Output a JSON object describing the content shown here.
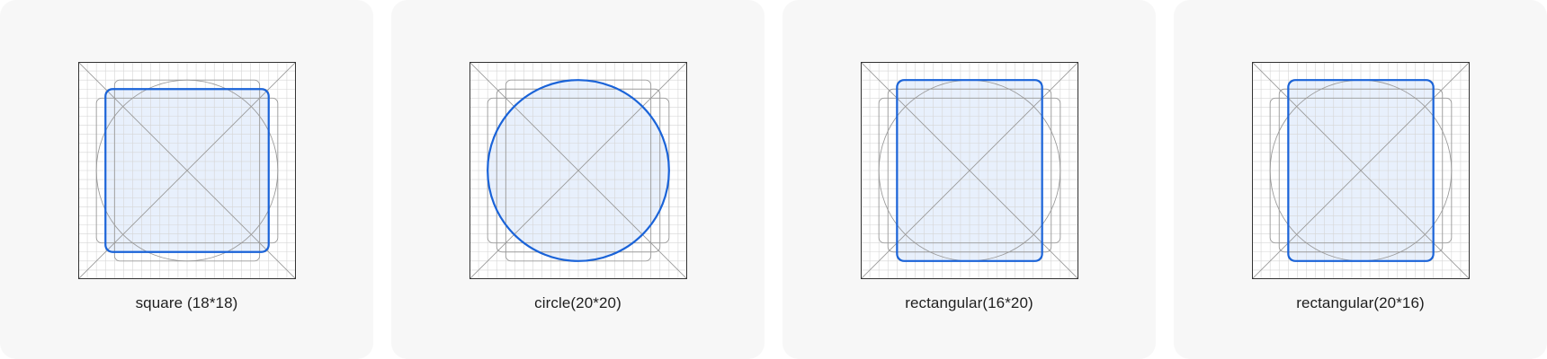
{
  "accent_color": "#1a63d8",
  "cards": [
    {
      "caption": "square (18*18)",
      "shape": "square"
    },
    {
      "caption": "circle(20*20)",
      "shape": "circle"
    },
    {
      "caption": "rectangular(16*20)",
      "shape": "rect-tall"
    },
    {
      "caption": "rectangular(20*16)",
      "shape": "rect-wide"
    }
  ]
}
